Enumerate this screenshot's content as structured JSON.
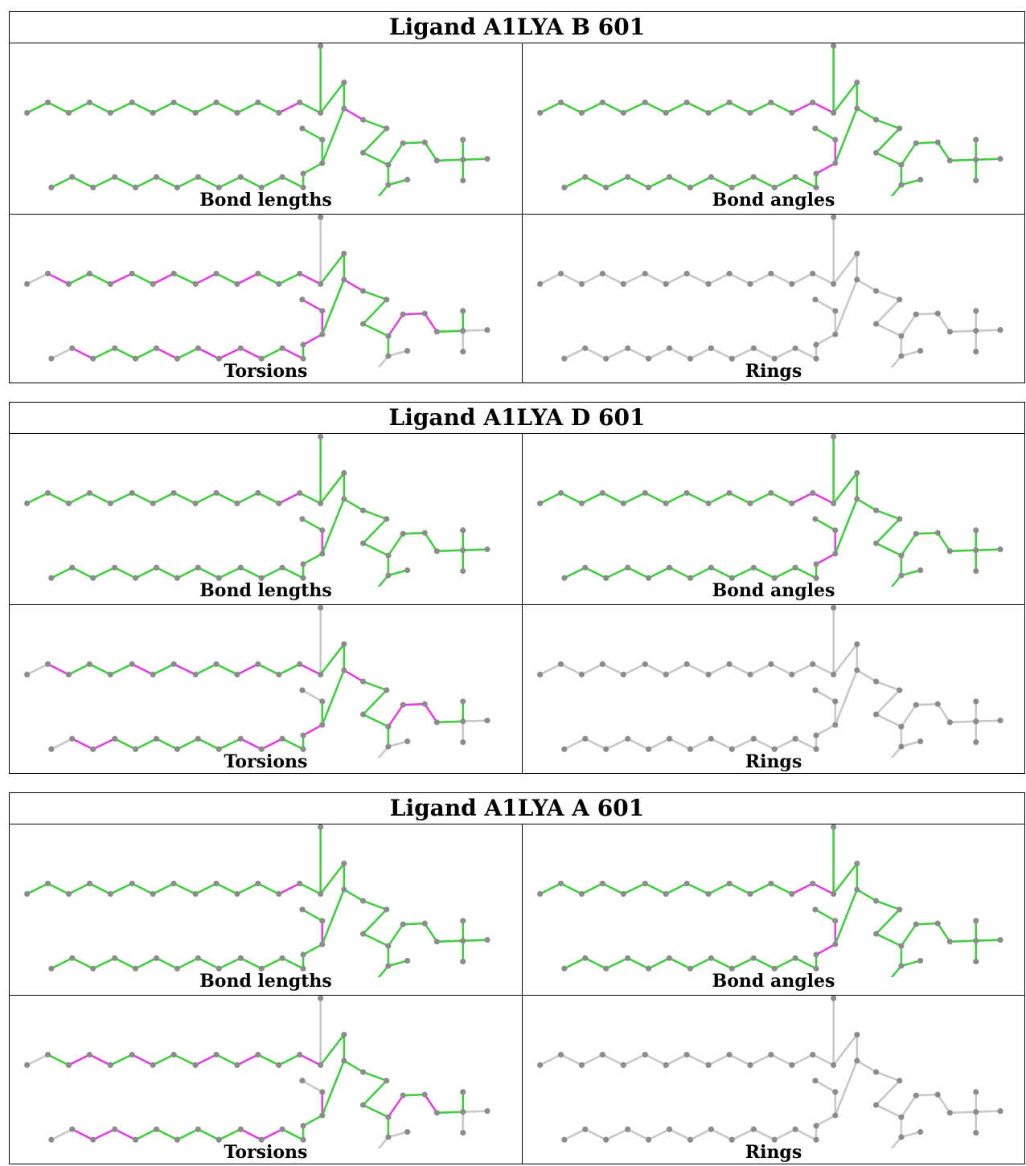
{
  "blocks": [
    {
      "title": "Ligand A1LYA B 601",
      "panels": [
        {
          "caption": "Bond lengths",
          "mode": "lengths",
          "outliers": [
            "u12-u13",
            "j0-j1",
            "s0-s1",
            "s0-s2",
            "s0-s3"
          ]
        },
        {
          "caption": "Bond angles",
          "mode": "angles",
          "outliers": [
            "u12-u13",
            "u13-u14",
            "b0-b1",
            "b1-b2"
          ]
        },
        {
          "caption": "Torsions",
          "mode": "torsions",
          "outliers": [
            "u1-u2",
            "u4-u5",
            "u6-u7",
            "u8-u9",
            "u10-u11",
            "u13-u14",
            "u14-j0",
            "b0-b1",
            "b1-b2",
            "b2-b3",
            "j0-j1",
            "t1-t2",
            "t2-t3",
            "t3-t4",
            "l1-l2",
            "l5-l6",
            "l7-l8",
            "l8-l9",
            "l9-l10",
            "l11-l12"
          ]
        },
        {
          "caption": "Rings",
          "mode": "rings",
          "outliers": []
        }
      ]
    },
    {
      "title": "Ligand A1LYA D 601",
      "panels": [
        {
          "caption": "Bond lengths",
          "mode": "lengths",
          "outliers": [
            "u12-u13",
            "b1-b2",
            "s0-s1",
            "s0-s2",
            "s0-s3"
          ]
        },
        {
          "caption": "Bond angles",
          "mode": "angles",
          "outliers": [
            "u12-u13",
            "u13-u14",
            "b0-b1",
            "b1-b2"
          ]
        },
        {
          "caption": "Torsions",
          "mode": "torsions",
          "outliers": [
            "u1-u2",
            "u5-u6",
            "u7-u8",
            "u10-u11",
            "u13-u14",
            "b0-b1",
            "j0-j1",
            "t1-t2",
            "t2-t3",
            "t3-t4",
            "l1-l2",
            "l2-l3",
            "l9-l10",
            "l10-l11"
          ]
        },
        {
          "caption": "Rings",
          "mode": "rings",
          "outliers": []
        }
      ]
    },
    {
      "title": "Ligand A1LYA A 601",
      "panels": [
        {
          "caption": "Bond lengths",
          "mode": "lengths",
          "outliers": [
            "u12-u13",
            "b1-b2",
            "s0-s1",
            "s0-s2"
          ]
        },
        {
          "caption": "Bond angles",
          "mode": "angles",
          "outliers": [
            "u12-u13",
            "u13-u14",
            "b0-b1",
            "b1-b2"
          ]
        },
        {
          "caption": "Torsions",
          "mode": "torsions",
          "outliers": [
            "u2-u3",
            "u3-u4",
            "u5-u6",
            "u8-u9",
            "u10-u11",
            "u13-u14",
            "u14-j0",
            "b1-b2",
            "s0-s1",
            "t1-t2",
            "t3-t4",
            "l1-l2",
            "l2-l3",
            "l3-l4",
            "l9-l10",
            "l10-l11"
          ]
        },
        {
          "caption": "Rings",
          "mode": "rings",
          "outliers": []
        }
      ]
    }
  ],
  "colors": {
    "ok_bond": "#44cc44",
    "outlier_bond": "#e040e0",
    "neutral_bond": "#c8c8c8",
    "atom": "#8c8c8c",
    "border": "#000000"
  }
}
